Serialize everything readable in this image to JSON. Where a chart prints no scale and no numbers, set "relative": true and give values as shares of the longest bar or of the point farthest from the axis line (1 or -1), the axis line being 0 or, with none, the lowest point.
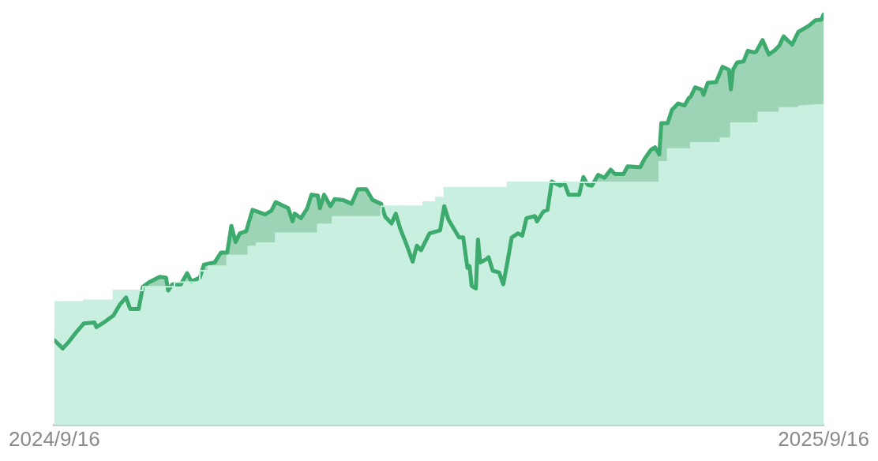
{
  "chart_data": {
    "type": "area",
    "relative": true,
    "marker": "none",
    "tick_labels": "x",
    "xlim": [
      "2024-09-16",
      "2025-09-16"
    ],
    "xticks": [
      {
        "value": "2024-09-16",
        "label": "2024/9/16"
      },
      {
        "value": "2025-09-16",
        "label": "2025/9/16"
      }
    ],
    "series": [
      {
        "type": "area",
        "color": "#3daa6e",
        "x": [
          "2024-09-16",
          "2024-09-20",
          "2024-09-23",
          "2024-09-26",
          "2024-09-30",
          "2024-10-05",
          "2024-10-06",
          "2024-10-10",
          "2024-10-14",
          "2024-10-17",
          "2024-10-20",
          "2024-10-22",
          "2024-10-26",
          "2024-10-28",
          "2024-10-31",
          "2024-11-05",
          "2024-11-08",
          "2024-11-09",
          "2024-11-11",
          "2024-11-15",
          "2024-11-18",
          "2024-11-20",
          "2024-11-24",
          "2024-11-26",
          "2024-12-01",
          "2024-12-04",
          "2024-12-07",
          "2024-12-09",
          "2024-12-11",
          "2024-12-13",
          "2024-12-16",
          "2024-12-19",
          "2024-12-25",
          "2024-12-28",
          "2024-12-30",
          "2025-01-05",
          "2025-01-07",
          "2025-01-08",
          "2025-01-11",
          "2025-01-14",
          "2025-01-16",
          "2025-01-19",
          "2025-01-20",
          "2025-01-22",
          "2025-01-25",
          "2025-01-27",
          "2025-01-31",
          "2025-02-04",
          "2025-02-07",
          "2025-02-11",
          "2025-02-14",
          "2025-02-18",
          "2025-02-20",
          "2025-02-23",
          "2025-02-25",
          "2025-02-27",
          "2025-03-02",
          "2025-03-05",
          "2025-03-07",
          "2025-03-09",
          "2025-03-13",
          "2025-03-18",
          "2025-03-20",
          "2025-03-22",
          "2025-03-27",
          "2025-03-29",
          "2025-03-31",
          "2025-04-01",
          "2025-04-02",
          "2025-04-04",
          "2025-04-05",
          "2025-04-06",
          "2025-04-09",
          "2025-04-10",
          "2025-04-12",
          "2025-04-15",
          "2025-04-17",
          "2025-04-19",
          "2025-04-21",
          "2025-04-24",
          "2025-04-26",
          "2025-04-28",
          "2025-05-02",
          "2025-05-03",
          "2025-05-06",
          "2025-05-08",
          "2025-05-10",
          "2025-05-14",
          "2025-05-16",
          "2025-05-18",
          "2025-05-23",
          "2025-05-25",
          "2025-05-27",
          "2025-05-29",
          "2025-06-01",
          "2025-06-04",
          "2025-06-07",
          "2025-06-09",
          "2025-06-13",
          "2025-06-15",
          "2025-06-21",
          "2025-06-23",
          "2025-06-26",
          "2025-06-28",
          "2025-06-30",
          "2025-07-01",
          "2025-07-04",
          "2025-07-06",
          "2025-07-09",
          "2025-07-12",
          "2025-07-14",
          "2025-07-15",
          "2025-07-17",
          "2025-07-20",
          "2025-07-21",
          "2025-07-23",
          "2025-07-27",
          "2025-07-30",
          "2025-08-02",
          "2025-08-03",
          "2025-08-04",
          "2025-08-06",
          "2025-08-09",
          "2025-08-11",
          "2025-08-14",
          "2025-08-15",
          "2025-08-18",
          "2025-08-21",
          "2025-08-24",
          "2025-08-26",
          "2025-08-28",
          "2025-09-01",
          "2025-09-04",
          "2025-09-09",
          "2025-09-12",
          "2025-09-15",
          "2025-09-16"
        ],
        "values": [
          0.207,
          0.187,
          0.204,
          0.224,
          0.248,
          0.25,
          0.239,
          0.252,
          0.267,
          0.293,
          0.311,
          0.283,
          0.283,
          0.337,
          0.348,
          0.361,
          0.359,
          0.328,
          0.343,
          0.343,
          0.37,
          0.35,
          0.359,
          0.391,
          0.396,
          0.42,
          0.42,
          0.485,
          0.446,
          0.467,
          0.472,
          0.524,
          0.513,
          0.522,
          0.543,
          0.528,
          0.496,
          0.515,
          0.504,
          0.528,
          0.561,
          0.559,
          0.528,
          0.561,
          0.533,
          0.55,
          0.548,
          0.539,
          0.574,
          0.574,
          0.548,
          0.539,
          0.507,
          0.491,
          0.515,
          0.48,
          0.441,
          0.398,
          0.437,
          0.426,
          0.467,
          0.474,
          0.533,
          0.5,
          0.457,
          0.457,
          0.383,
          0.387,
          0.339,
          0.333,
          0.452,
          0.396,
          0.404,
          0.409,
          0.376,
          0.372,
          0.343,
          0.398,
          0.457,
          0.467,
          0.461,
          0.504,
          0.509,
          0.496,
          0.52,
          0.524,
          0.593,
          0.583,
          0.589,
          0.561,
          0.561,
          0.604,
          0.585,
          0.583,
          0.609,
          0.602,
          0.622,
          0.611,
          0.611,
          0.63,
          0.628,
          0.648,
          0.67,
          0.676,
          0.659,
          0.735,
          0.735,
          0.767,
          0.783,
          0.778,
          0.796,
          0.8,
          0.822,
          0.817,
          0.804,
          0.833,
          0.835,
          0.872,
          0.865,
          0.817,
          0.865,
          0.883,
          0.885,
          0.911,
          0.907,
          0.909,
          0.937,
          0.902,
          0.913,
          0.924,
          0.946,
          0.926,
          0.957,
          0.972,
          0.985,
          0.987,
          1
        ]
      },
      {
        "type": "area",
        "color": "#c8efdf",
        "x": [
          "2024-09-16",
          "2024-09-30",
          "2024-09-30",
          "2024-10-14",
          "2024-10-14",
          "2024-10-28",
          "2024-10-28",
          "2024-11-12",
          "2024-11-12",
          "2024-11-24",
          "2024-11-24",
          "2024-11-28",
          "2024-11-28",
          "2024-12-07",
          "2024-12-07",
          "2024-12-17",
          "2024-12-17",
          "2024-12-21",
          "2024-12-21",
          "2024-12-30",
          "2024-12-30",
          "2025-01-19",
          "2025-01-19",
          "2025-01-26",
          "2025-01-26",
          "2025-02-18",
          "2025-02-18",
          "2025-03-10",
          "2025-03-10",
          "2025-03-16",
          "2025-03-16",
          "2025-03-20",
          "2025-03-20",
          "2025-04-19",
          "2025-04-19",
          "2025-06-30",
          "2025-06-30",
          "2025-07-04",
          "2025-07-04",
          "2025-07-15",
          "2025-07-15",
          "2025-07-29",
          "2025-07-29",
          "2025-08-03",
          "2025-08-03",
          "2025-08-16",
          "2025-08-16",
          "2025-08-26",
          "2025-08-26",
          "2025-09-04",
          "2025-09-04",
          "2025-09-16"
        ],
        "values": [
          0.3,
          0.3,
          0.304,
          0.304,
          0.328,
          0.328,
          0.337,
          0.337,
          0.348,
          0.348,
          0.376,
          0.376,
          0.387,
          0.387,
          0.413,
          0.413,
          0.435,
          0.435,
          0.443,
          0.443,
          0.467,
          0.467,
          0.489,
          0.489,
          0.507,
          0.507,
          0.533,
          0.533,
          0.543,
          0.543,
          0.554,
          0.554,
          0.578,
          0.578,
          0.591,
          0.591,
          0.641,
          0.641,
          0.672,
          0.672,
          0.687,
          0.687,
          0.698,
          0.698,
          0.735,
          0.735,
          0.761,
          0.761,
          0.772,
          0.772,
          0.776,
          0.78
        ]
      }
    ]
  }
}
